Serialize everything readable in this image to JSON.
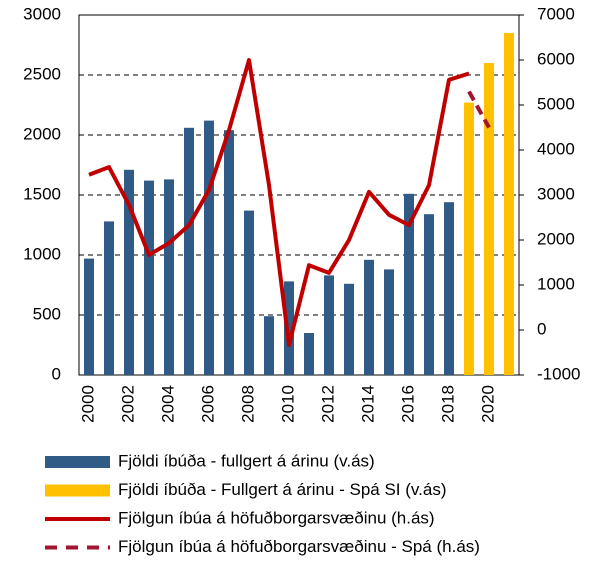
{
  "chart_data": {
    "type": "bar_line",
    "categories": [
      "2000",
      null,
      "2002",
      null,
      "2004",
      null,
      "2006",
      null,
      "2008",
      null,
      "2010",
      null,
      "2012",
      null,
      "2014",
      null,
      "2016",
      null,
      "2018",
      null,
      "2020",
      null
    ],
    "series": [
      {
        "name": "Fjöldi íbúða - fullgert á árinu (v.ás)",
        "type": "bar",
        "color": "#2f5b86",
        "values": [
          970,
          1280,
          1710,
          1620,
          1630,
          2060,
          2120,
          2040,
          1370,
          490,
          780,
          350,
          830,
          760,
          960,
          880,
          1510,
          1340,
          1440,
          null,
          null,
          null
        ]
      },
      {
        "name": "Fjöldi íbúða - Fullgert á árinu - Spá SI (v.ás)",
        "type": "bar",
        "color": "#ffc000",
        "values": [
          null,
          null,
          null,
          null,
          null,
          null,
          null,
          null,
          null,
          null,
          null,
          null,
          null,
          null,
          null,
          null,
          null,
          null,
          null,
          2270,
          2600,
          2850
        ]
      },
      {
        "name": "Fjölgun íbúa á höfuðborgarsvæðinu (h.ás)",
        "type": "line",
        "axis": "y2",
        "color": "#c00000",
        "dash": false,
        "values": [
          3450,
          3620,
          2780,
          1670,
          1930,
          2330,
          3110,
          4440,
          6000,
          3220,
          -330,
          1440,
          1270,
          2000,
          3070,
          2560,
          2330,
          3220,
          5560,
          5700,
          null,
          null
        ]
      },
      {
        "name": "Fjölgun íbúa á höfuðborgarsvæðinu - Spá (h.ás)",
        "type": "line",
        "axis": "y2",
        "color": "#a01530",
        "dash": true,
        "values": [
          null,
          null,
          null,
          null,
          null,
          null,
          null,
          null,
          null,
          null,
          null,
          null,
          null,
          null,
          null,
          null,
          null,
          null,
          null,
          5300,
          4500,
          null
        ]
      }
    ],
    "ylim": [
      0,
      3000
    ],
    "yticks": [
      0,
      500,
      1000,
      1500,
      2000,
      2500,
      3000
    ],
    "y2lim": [
      -1000,
      7000
    ],
    "y2ticks": [
      -1000,
      0,
      1000,
      2000,
      3000,
      4000,
      5000,
      6000,
      7000
    ],
    "grid": true,
    "legend": "bottom"
  }
}
